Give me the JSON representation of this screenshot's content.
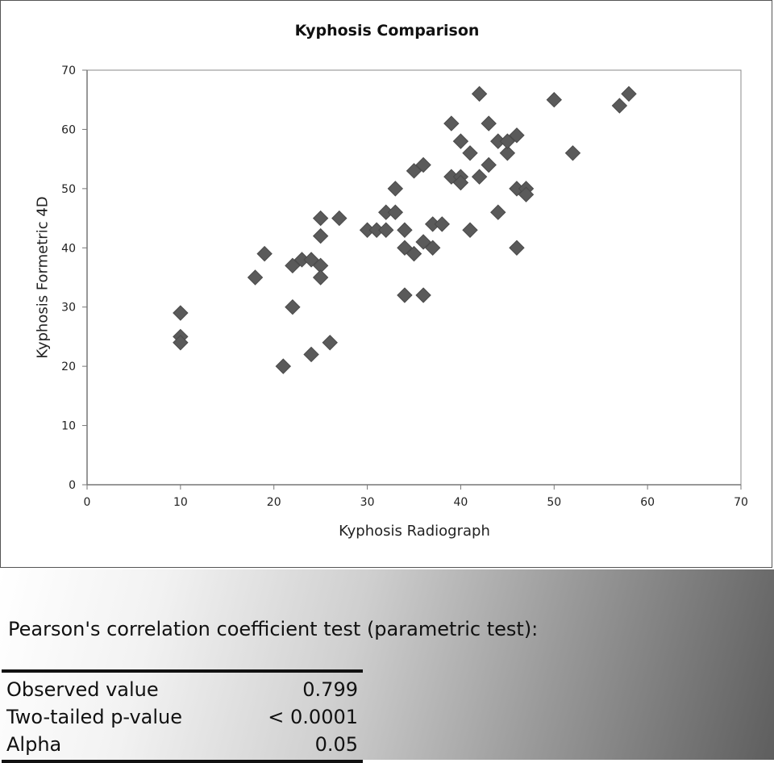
{
  "chart_data": {
    "type": "scatter",
    "title": "Kyphosis Comparison",
    "xlabel": "Kyphosis Radiograph",
    "ylabel": "Kyphosis Formetric 4D",
    "xlim": [
      0,
      70
    ],
    "ylim": [
      0,
      70
    ],
    "x_ticks": [
      0,
      10,
      20,
      30,
      40,
      50,
      60,
      70
    ],
    "y_ticks": [
      0,
      10,
      20,
      30,
      40,
      50,
      60,
      70
    ],
    "grid": false,
    "marker": "diamond",
    "marker_color": "#5a5a5a",
    "points": [
      [
        10,
        29
      ],
      [
        10,
        25
      ],
      [
        10,
        24
      ],
      [
        18,
        35
      ],
      [
        19,
        39
      ],
      [
        21,
        20
      ],
      [
        22,
        37
      ],
      [
        22,
        30
      ],
      [
        23,
        38
      ],
      [
        24,
        38
      ],
      [
        24,
        22
      ],
      [
        25,
        37
      ],
      [
        25,
        35
      ],
      [
        25,
        42
      ],
      [
        25,
        45
      ],
      [
        26,
        24
      ],
      [
        27,
        45
      ],
      [
        30,
        43
      ],
      [
        31,
        43
      ],
      [
        32,
        43
      ],
      [
        32,
        46
      ],
      [
        33,
        46
      ],
      [
        33,
        50
      ],
      [
        34,
        43
      ],
      [
        34,
        40
      ],
      [
        34,
        32
      ],
      [
        35,
        39
      ],
      [
        35,
        53
      ],
      [
        36,
        54
      ],
      [
        36,
        41
      ],
      [
        36,
        32
      ],
      [
        37,
        40
      ],
      [
        37,
        44
      ],
      [
        38,
        44
      ],
      [
        39,
        61
      ],
      [
        39,
        52
      ],
      [
        40,
        52
      ],
      [
        40,
        51
      ],
      [
        40,
        58
      ],
      [
        41,
        56
      ],
      [
        41,
        43
      ],
      [
        42,
        66
      ],
      [
        42,
        52
      ],
      [
        43,
        61
      ],
      [
        43,
        54
      ],
      [
        44,
        58
      ],
      [
        44,
        46
      ],
      [
        45,
        56
      ],
      [
        45,
        58
      ],
      [
        46,
        59
      ],
      [
        46,
        50
      ],
      [
        46,
        40
      ],
      [
        47,
        50
      ],
      [
        47,
        49
      ],
      [
        50,
        65
      ],
      [
        52,
        56
      ],
      [
        57,
        64
      ],
      [
        58,
        66
      ]
    ]
  },
  "stats": {
    "heading": "Pearson's correlation coefficient test (parametric test):",
    "rows": [
      {
        "label": "Observed value",
        "value": "0.799"
      },
      {
        "label": "Two-tailed p-value",
        "value": "< 0.0001"
      },
      {
        "label": "Alpha",
        "value": "0.05"
      }
    ]
  }
}
